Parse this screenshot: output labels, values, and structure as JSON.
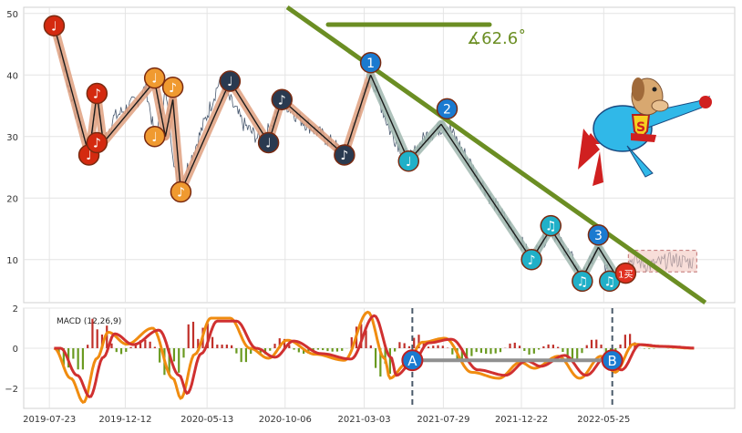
{
  "chart_data": [
    {
      "type": "line",
      "panel": "price",
      "grid": true,
      "y_ticks": [
        "10",
        "20",
        "30",
        "40",
        "50"
      ],
      "ylim": [
        3,
        51
      ],
      "series_color": "#4a5a70",
      "line_color": "#1a1a1a",
      "band_color_up": "#e0a080",
      "band_color_down": "#a0b8b0",
      "price_series": [
        {
          "x": "2019-08-01",
          "y": 48
        },
        {
          "x": "2019-08-20",
          "y": 41
        },
        {
          "x": "2019-09-10",
          "y": 34
        },
        {
          "x": "2019-10-05",
          "y": 27
        },
        {
          "x": "2019-10-20",
          "y": 36
        },
        {
          "x": "2019-11-01",
          "y": 29
        },
        {
          "x": "2019-11-20",
          "y": 33
        },
        {
          "x": "2020-01-05",
          "y": 36
        },
        {
          "x": "2020-01-20",
          "y": 38
        },
        {
          "x": "2020-02-05",
          "y": 30
        },
        {
          "x": "2020-02-25",
          "y": 37
        },
        {
          "x": "2020-03-20",
          "y": 21
        },
        {
          "x": "2020-04-20",
          "y": 28
        },
        {
          "x": "2020-06-05",
          "y": 39
        },
        {
          "x": "2020-07-20",
          "y": 32
        },
        {
          "x": "2020-08-25",
          "y": 29
        },
        {
          "x": "2020-09-30",
          "y": 36
        },
        {
          "x": "2020-11-01",
          "y": 33
        },
        {
          "x": "2021-01-01",
          "y": 29
        },
        {
          "x": "2021-01-25",
          "y": 27
        },
        {
          "x": "2021-03-15",
          "y": 40
        },
        {
          "x": "2021-04-20",
          "y": 31
        },
        {
          "x": "2021-05-25",
          "y": 26
        },
        {
          "x": "2021-06-25",
          "y": 30
        },
        {
          "x": "2021-08-05",
          "y": 32
        },
        {
          "x": "2021-09-15",
          "y": 26
        },
        {
          "x": "2021-10-25",
          "y": 20
        },
        {
          "x": "2021-12-20",
          "y": 13
        },
        {
          "x": "2022-01-10",
          "y": 10
        },
        {
          "x": "2022-02-15",
          "y": 15
        },
        {
          "x": "2022-03-20",
          "y": 11
        },
        {
          "x": "2022-04-15",
          "y": 7
        },
        {
          "x": "2022-05-15",
          "y": 12
        },
        {
          "x": "2022-06-05",
          "y": 7
        },
        {
          "x": "2022-06-25",
          "y": 7.5
        },
        {
          "x": "2022-07-15",
          "y": 10
        },
        {
          "x": "2022-08-20",
          "y": 9
        },
        {
          "x": "2022-09-30",
          "y": 10
        },
        {
          "x": "2022-11-10",
          "y": 9.5
        }
      ],
      "zigzag": [
        {
          "x": "2019-08-01",
          "y": 48
        },
        {
          "x": "2019-10-05",
          "y": 27
        },
        {
          "x": "2019-10-20",
          "y": 37
        },
        {
          "x": "2019-11-01",
          "y": 29
        },
        {
          "x": "2020-02-05",
          "y": 39
        },
        {
          "x": "2020-02-25",
          "y": 30
        },
        {
          "x": "2020-03-10",
          "y": 36
        },
        {
          "x": "2020-03-25",
          "y": 21
        },
        {
          "x": "2020-06-25",
          "y": 39
        },
        {
          "x": "2020-09-05",
          "y": 29
        },
        {
          "x": "2020-09-30",
          "y": 36
        },
        {
          "x": "2021-01-25",
          "y": 27
        },
        {
          "x": "2021-03-15",
          "y": 40
        },
        {
          "x": "2021-05-25",
          "y": 26
        },
        {
          "x": "2021-07-25",
          "y": 32
        },
        {
          "x": "2022-01-10",
          "y": 10
        },
        {
          "x": "2022-02-15",
          "y": 15
        },
        {
          "x": "2022-04-15",
          "y": 7
        },
        {
          "x": "2022-05-15",
          "y": 12
        },
        {
          "x": "2022-06-20",
          "y": 7
        }
      ],
      "markers": [
        {
          "kind": "circle",
          "x": "2019-08-01",
          "y": 48,
          "label": "♩",
          "color": "#d42a10"
        },
        {
          "kind": "circle",
          "x": "2019-10-05",
          "y": 27,
          "label": "♩",
          "color": "#d42a10"
        },
        {
          "kind": "circle",
          "x": "2019-10-20",
          "y": 37,
          "label": "♪",
          "color": "#d42a10"
        },
        {
          "kind": "circle",
          "x": "2019-10-20",
          "y": 29,
          "label": "♪",
          "color": "#d42a10"
        },
        {
          "kind": "circle",
          "x": "2020-02-05",
          "y": 39.5,
          "label": "♩",
          "color": "#f09a30"
        },
        {
          "kind": "circle",
          "x": "2020-02-05",
          "y": 30,
          "label": "♩",
          "color": "#f09a30"
        },
        {
          "kind": "circle",
          "x": "2020-03-10",
          "y": 38,
          "label": "♪",
          "color": "#f09a30"
        },
        {
          "kind": "circle",
          "x": "2020-03-25",
          "y": 21,
          "label": "♪",
          "color": "#f09a30"
        },
        {
          "kind": "circle",
          "x": "2020-06-25",
          "y": 39,
          "label": "♩",
          "color": "#2a3a50"
        },
        {
          "kind": "circle",
          "x": "2020-09-05",
          "y": 29,
          "label": "♩",
          "color": "#2a3a50"
        },
        {
          "kind": "circle",
          "x": "2020-09-30",
          "y": 36,
          "label": "♪",
          "color": "#2a3a50"
        },
        {
          "kind": "circle",
          "x": "2021-01-25",
          "y": 27,
          "label": "♪",
          "color": "#2a3a50"
        },
        {
          "kind": "circle",
          "x": "2021-03-15",
          "y": 42,
          "label": "1",
          "color": "#1a7ad0"
        },
        {
          "kind": "circle",
          "x": "2021-05-25",
          "y": 26,
          "label": "♩",
          "color": "#20b0c8"
        },
        {
          "kind": "circle",
          "x": "2021-08-05",
          "y": 34.5,
          "label": "2",
          "color": "#1a7ad0"
        },
        {
          "kind": "circle",
          "x": "2022-01-10",
          "y": 10,
          "label": "♪",
          "color": "#20b0c8"
        },
        {
          "kind": "circle",
          "x": "2022-02-15",
          "y": 15.5,
          "label": "♫",
          "color": "#20b0c8"
        },
        {
          "kind": "circle",
          "x": "2022-04-15",
          "y": 6.5,
          "label": "♫",
          "color": "#20b0c8"
        },
        {
          "kind": "circle",
          "x": "2022-05-15",
          "y": 14,
          "label": "3",
          "color": "#1a7ad0"
        },
        {
          "kind": "circle",
          "x": "2022-06-05",
          "y": 6.5,
          "label": "♫",
          "color": "#20b0c8"
        },
        {
          "kind": "circle",
          "x": "2022-07-05",
          "y": 7.8,
          "label": "1买",
          "color": "#e03020"
        }
      ],
      "trendline": {
        "x1": "2020-10-10",
        "y1": 51,
        "x2": "2022-12-01",
        "y2": 3
      },
      "angle_label": "∡62.6˚",
      "angle_color": "#6b8e23",
      "consolidation_box": {
        "x1": "2022-07-10",
        "x2": "2022-11-15",
        "y1": 8,
        "y2": 11.5
      }
    },
    {
      "type": "line",
      "panel": "macd",
      "title": "MACD (12,26,9)",
      "grid": true,
      "y_ticks": [
        "−2",
        "0",
        "2"
      ],
      "ylim": [
        -3,
        2
      ],
      "x_ticks": [
        "2019-07-23",
        "2019-12-12",
        "2020-05-13",
        "2020-10-06",
        "2021-03-03",
        "2021-07-29",
        "2021-12-22",
        "2022-05-25"
      ],
      "series": [
        {
          "name": "",
          "color": "#f08c10"
        },
        {
          "name": "",
          "color": "#d03030"
        }
      ],
      "divergence_markers": [
        {
          "label": "A",
          "x": "2021-06-01",
          "y": -0.6
        },
        {
          "label": "B",
          "x": "2022-06-10",
          "y": -0.6
        }
      ],
      "vlines": [
        "2021-06-01",
        "2022-06-10"
      ]
    }
  ],
  "icon": "flying-superhero-dog-icon"
}
